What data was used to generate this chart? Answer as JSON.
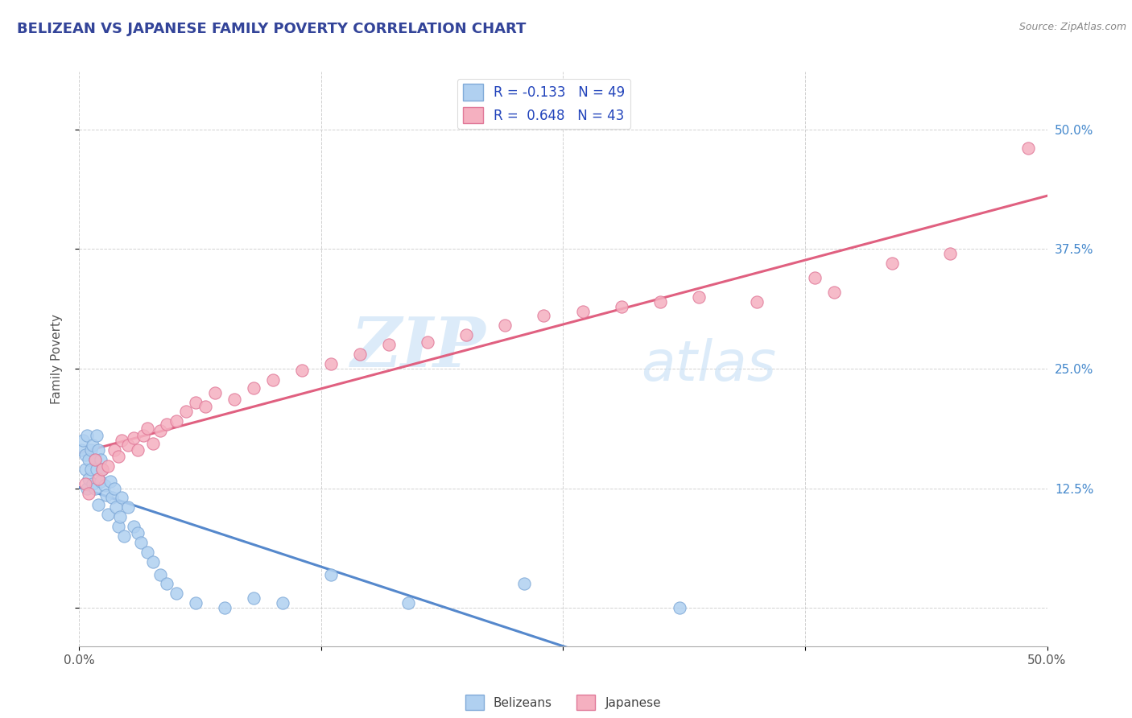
{
  "title": "BELIZEAN VS JAPANESE FAMILY POVERTY CORRELATION CHART",
  "source": "Source: ZipAtlas.com",
  "ylabel_label": "Family Poverty",
  "xlim": [
    0.0,
    0.5
  ],
  "ylim": [
    -0.04,
    0.56
  ],
  "xticks": [
    0.0,
    0.125,
    0.25,
    0.375,
    0.5
  ],
  "xticklabels": [
    "0.0%",
    "",
    "",
    "",
    "50.0%"
  ],
  "ytick_positions": [
    0.0,
    0.125,
    0.25,
    0.375,
    0.5
  ],
  "ytick_labels_right": [
    "",
    "12.5%",
    "25.0%",
    "37.5%",
    "50.0%"
  ],
  "belizean_color": "#b0d0f0",
  "belizean_edge": "#80aad8",
  "japanese_color": "#f5b0c0",
  "japanese_edge": "#e07898",
  "belizean_R": -0.133,
  "belizean_N": 49,
  "japanese_R": 0.648,
  "japanese_N": 43,
  "line_belizean_color": "#5588cc",
  "line_belizean_dash_color": "#99bbee",
  "line_japanese_color": "#e06080",
  "watermark_zip": "ZIP",
  "watermark_atlas": "atlas",
  "belizean_x": [
    0.001,
    0.002,
    0.003,
    0.003,
    0.004,
    0.004,
    0.005,
    0.005,
    0.006,
    0.006,
    0.007,
    0.007,
    0.008,
    0.008,
    0.009,
    0.009,
    0.01,
    0.01,
    0.011,
    0.011,
    0.012,
    0.013,
    0.014,
    0.015,
    0.016,
    0.017,
    0.018,
    0.019,
    0.02,
    0.021,
    0.022,
    0.023,
    0.025,
    0.028,
    0.03,
    0.032,
    0.035,
    0.038,
    0.042,
    0.045,
    0.05,
    0.06,
    0.075,
    0.09,
    0.105,
    0.13,
    0.17,
    0.23,
    0.31
  ],
  "belizean_y": [
    0.165,
    0.175,
    0.145,
    0.16,
    0.125,
    0.18,
    0.135,
    0.155,
    0.165,
    0.145,
    0.17,
    0.13,
    0.155,
    0.125,
    0.18,
    0.145,
    0.165,
    0.108,
    0.155,
    0.132,
    0.145,
    0.128,
    0.118,
    0.098,
    0.132,
    0.115,
    0.125,
    0.105,
    0.085,
    0.095,
    0.115,
    0.075,
    0.105,
    0.085,
    0.078,
    0.068,
    0.058,
    0.048,
    0.035,
    0.025,
    0.015,
    0.005,
    0.0,
    0.01,
    0.005,
    0.035,
    0.005,
    0.025,
    0.0
  ],
  "japanese_x": [
    0.003,
    0.005,
    0.008,
    0.01,
    0.012,
    0.015,
    0.018,
    0.02,
    0.022,
    0.025,
    0.028,
    0.03,
    0.033,
    0.035,
    0.038,
    0.042,
    0.045,
    0.05,
    0.055,
    0.06,
    0.065,
    0.07,
    0.08,
    0.09,
    0.1,
    0.115,
    0.13,
    0.145,
    0.16,
    0.18,
    0.2,
    0.22,
    0.24,
    0.26,
    0.28,
    0.3,
    0.32,
    0.35,
    0.38,
    0.39,
    0.42,
    0.45,
    0.49
  ],
  "japanese_y": [
    0.13,
    0.12,
    0.155,
    0.135,
    0.145,
    0.148,
    0.165,
    0.158,
    0.175,
    0.17,
    0.178,
    0.165,
    0.18,
    0.188,
    0.172,
    0.185,
    0.192,
    0.195,
    0.205,
    0.215,
    0.21,
    0.225,
    0.218,
    0.23,
    0.238,
    0.248,
    0.255,
    0.265,
    0.275,
    0.278,
    0.285,
    0.295,
    0.305,
    0.31,
    0.315,
    0.32,
    0.325,
    0.32,
    0.345,
    0.33,
    0.36,
    0.37,
    0.48
  ]
}
